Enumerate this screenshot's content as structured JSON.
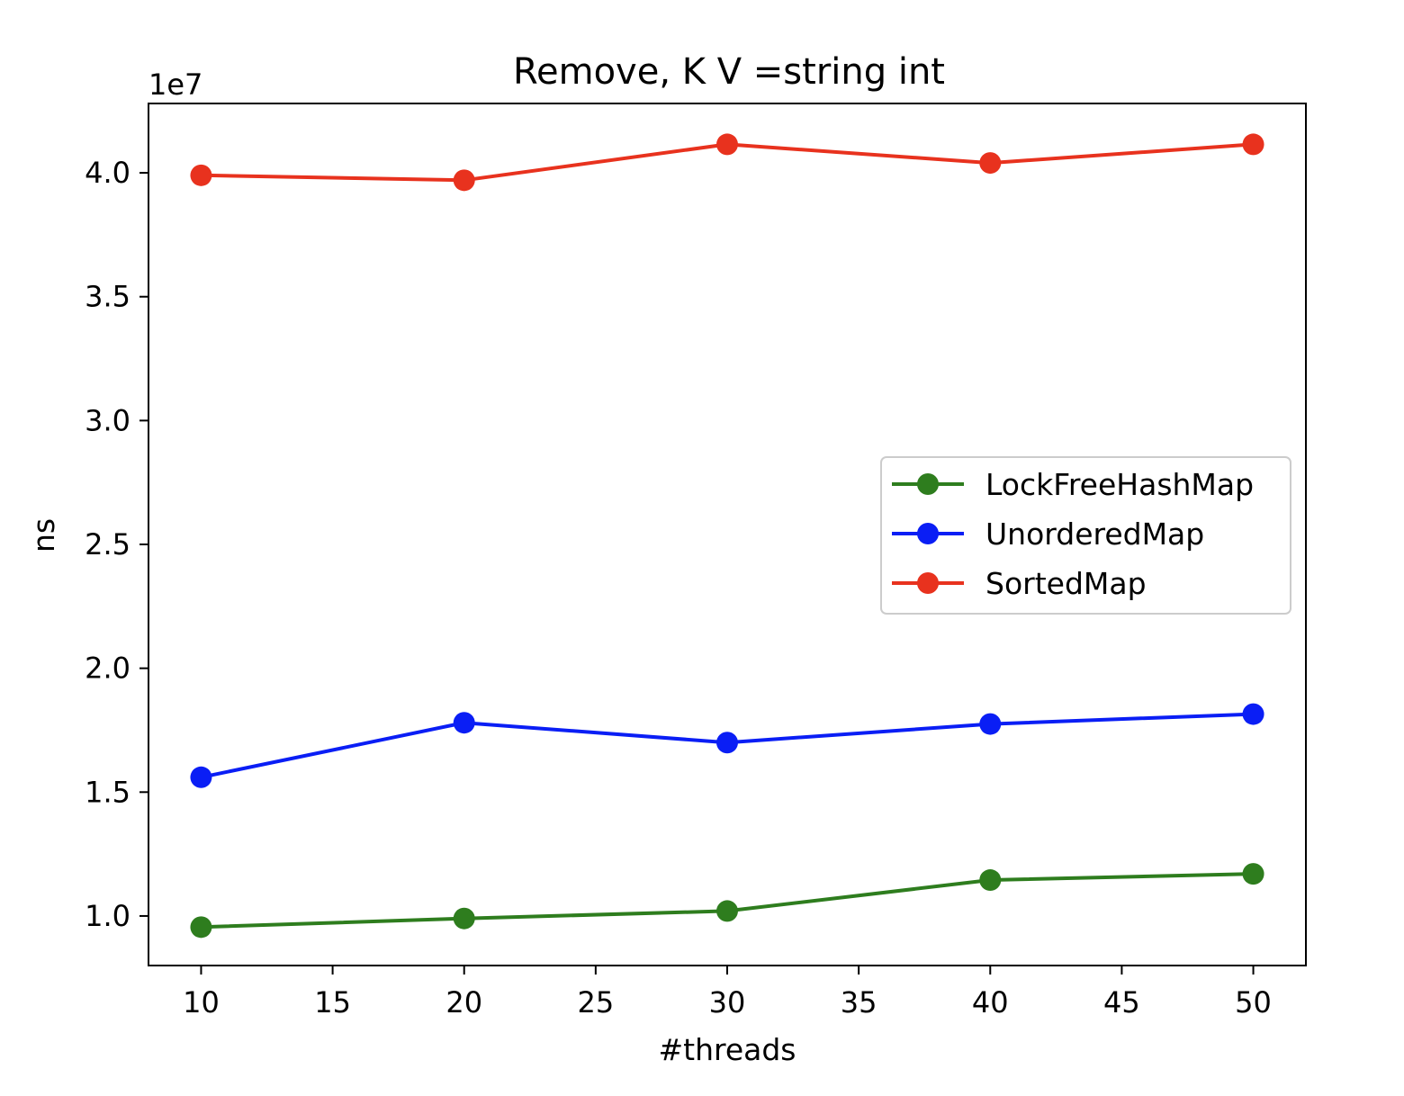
{
  "chart_data": {
    "type": "line",
    "title": "Remove, K V =string int",
    "xlabel": "#threads",
    "ylabel": "ns",
    "offset_text": "1e7",
    "x": [
      10,
      20,
      30,
      40,
      50
    ],
    "xlim": [
      8,
      52
    ],
    "ylim": [
      0.8,
      4.28
    ],
    "xticks": [
      10,
      15,
      20,
      25,
      30,
      35,
      40,
      45,
      50
    ],
    "xtick_labels": [
      "10",
      "15",
      "20",
      "25",
      "30",
      "35",
      "40",
      "45",
      "50"
    ],
    "yticks": [
      1.0,
      1.5,
      2.0,
      2.5,
      3.0,
      3.5,
      4.0
    ],
    "ytick_labels": [
      "1.0",
      "1.5",
      "2.0",
      "2.5",
      "3.0",
      "3.5",
      "4.0"
    ],
    "grid": false,
    "legend_position": "center-right",
    "series": [
      {
        "name": "LockFreeHashMap",
        "color": "#2e7d1e",
        "values": [
          0.955,
          0.99,
          1.02,
          1.145,
          1.17
        ]
      },
      {
        "name": "UnorderedMap",
        "color": "#0a1ef5",
        "values": [
          1.56,
          1.78,
          1.7,
          1.775,
          1.815
        ]
      },
      {
        "name": "SortedMap",
        "color": "#e8321e",
        "values": [
          3.99,
          3.97,
          4.115,
          4.04,
          4.115
        ]
      }
    ]
  }
}
